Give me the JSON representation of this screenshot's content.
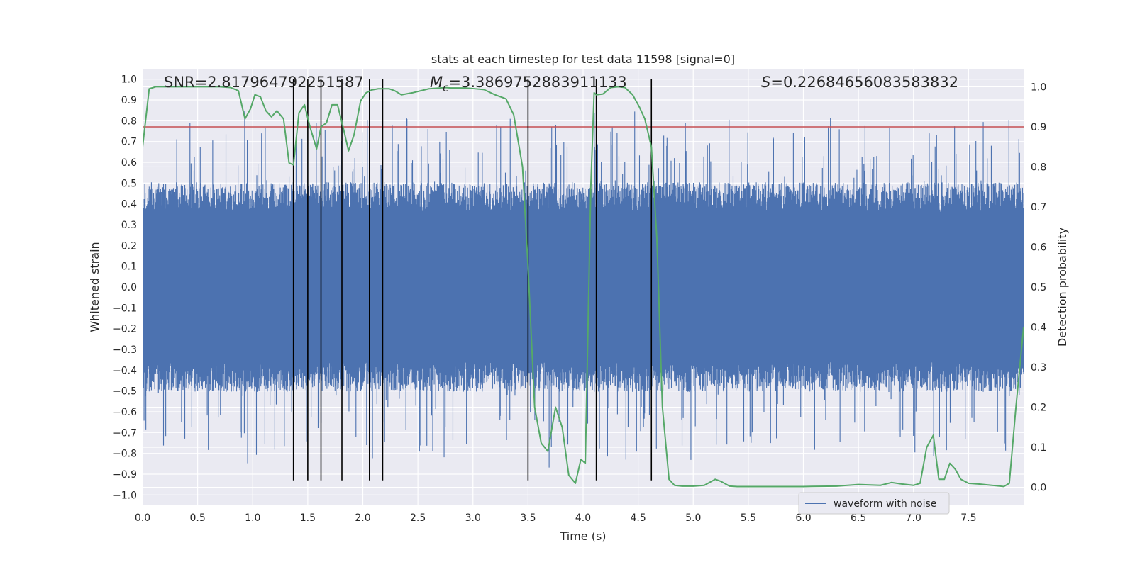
{
  "chart_data": {
    "type": "line",
    "title": "stats at each timestep for test data 11598 [signal=0]",
    "xlabel": "Time (s)",
    "ylabel_left": "Whitened strain",
    "ylabel_right": "Detection probability",
    "xlim": [
      0.0,
      8.0
    ],
    "ylim_left": [
      -1.05,
      1.05
    ],
    "ylim_right": [
      -0.045,
      1.045
    ],
    "xticks": [
      "0.0",
      "0.5",
      "1.0",
      "1.5",
      "2.0",
      "2.5",
      "3.0",
      "3.5",
      "4.0",
      "4.5",
      "5.0",
      "5.5",
      "6.0",
      "6.5",
      "7.0",
      "7.5"
    ],
    "yticks_left": [
      "1.0",
      "0.9",
      "0.8",
      "0.7",
      "0.6",
      "0.5",
      "0.4",
      "0.3",
      "0.2",
      "0.1",
      "0.0",
      "−0.1",
      "−0.2",
      "−0.3",
      "−0.4",
      "−0.5",
      "−0.6",
      "−0.7",
      "−0.8",
      "−0.9",
      "−1.0"
    ],
    "yticks_right": [
      "1.0",
      "0.9",
      "0.8",
      "0.7",
      "0.6",
      "0.5",
      "0.4",
      "0.3",
      "0.2",
      "0.1",
      "0.0"
    ],
    "grid": true,
    "legend": {
      "position": "lower-right",
      "entries": [
        "waveform with noise"
      ]
    },
    "annotations": {
      "snr": "SNR=2.817964792251587",
      "mc_symbol": "M",
      "mc_subscript": "c",
      "mc_value": "=3.3869752883911133",
      "s_symbol": "S",
      "s_value": "=0.22684656083583832"
    },
    "threshold": {
      "value": 0.9,
      "axis": "right",
      "color": "#c44e52"
    },
    "event_lines_x": [
      1.37,
      1.5,
      1.62,
      1.81,
      2.06,
      2.18,
      3.5,
      4.12,
      4.62
    ],
    "series": [
      {
        "name": "waveform with noise",
        "color": "#4c72b0",
        "axis": "left",
        "kind": "noise-envelope",
        "typical_abs": 0.42,
        "max_abs": 1.0,
        "min_value": -0.93
      },
      {
        "color": "#55a868",
        "axis": "right",
        "x": [
          0.0,
          0.06,
          0.12,
          0.25,
          0.4,
          0.55,
          0.7,
          0.8,
          0.87,
          0.93,
          0.98,
          1.02,
          1.07,
          1.12,
          1.17,
          1.22,
          1.28,
          1.33,
          1.37,
          1.42,
          1.47,
          1.52,
          1.58,
          1.62,
          1.67,
          1.72,
          1.77,
          1.82,
          1.87,
          1.92,
          1.98,
          2.03,
          2.08,
          2.14,
          2.18,
          2.24,
          2.29,
          2.35,
          2.45,
          2.6,
          2.75,
          2.8,
          2.86,
          2.92,
          2.98,
          3.1,
          3.2,
          3.3,
          3.37,
          3.45,
          3.5,
          3.56,
          3.62,
          3.68,
          3.75,
          3.81,
          3.87,
          3.93,
          3.98,
          4.02,
          4.07,
          4.1,
          4.12,
          4.18,
          4.25,
          4.32,
          4.38,
          4.45,
          4.51,
          4.56,
          4.62,
          4.67,
          4.72,
          4.78,
          4.83,
          4.9,
          5.0,
          5.1,
          5.2,
          5.25,
          5.33,
          5.4,
          5.5,
          5.7,
          6.0,
          6.3,
          6.5,
          6.7,
          6.8,
          6.9,
          7.0,
          7.06,
          7.12,
          7.18,
          7.23,
          7.28,
          7.33,
          7.38,
          7.43,
          7.5,
          7.6,
          7.75,
          7.82,
          7.87,
          7.93,
          8.0
        ],
        "y": [
          0.85,
          0.995,
          1.0,
          1.0,
          1.0,
          1.0,
          1.0,
          0.998,
          0.99,
          0.92,
          0.945,
          0.98,
          0.975,
          0.94,
          0.925,
          0.94,
          0.92,
          0.81,
          0.805,
          0.935,
          0.955,
          0.9,
          0.845,
          0.9,
          0.91,
          0.955,
          0.955,
          0.9,
          0.84,
          0.88,
          0.965,
          0.985,
          0.992,
          0.995,
          0.995,
          0.995,
          0.99,
          0.98,
          0.985,
          0.995,
          0.998,
          0.997,
          0.997,
          0.997,
          0.996,
          0.993,
          0.98,
          0.97,
          0.93,
          0.8,
          0.55,
          0.2,
          0.11,
          0.09,
          0.2,
          0.15,
          0.03,
          0.01,
          0.07,
          0.06,
          0.75,
          0.985,
          0.98,
          0.982,
          0.998,
          1.0,
          0.998,
          0.98,
          0.95,
          0.92,
          0.85,
          0.62,
          0.2,
          0.02,
          0.005,
          0.003,
          0.003,
          0.005,
          0.02,
          0.015,
          0.003,
          0.002,
          0.002,
          0.002,
          0.002,
          0.003,
          0.007,
          0.005,
          0.012,
          0.008,
          0.005,
          0.01,
          0.1,
          0.13,
          0.02,
          0.02,
          0.06,
          0.045,
          0.02,
          0.01,
          0.008,
          0.004,
          0.002,
          0.01,
          0.2,
          0.4
        ]
      }
    ]
  }
}
